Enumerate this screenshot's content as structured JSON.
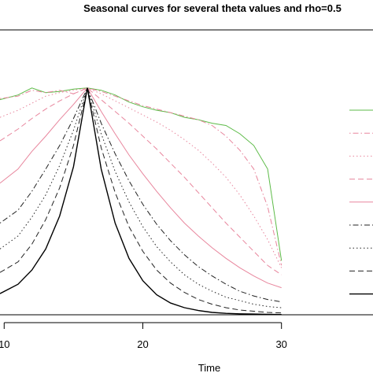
{
  "chart_data": {
    "type": "line",
    "title": "Seasonal curves for several theta values and rho=0.5",
    "xlabel": "Time",
    "ylabel": "",
    "xlim": [
      9.7,
      36.6
    ],
    "ylim": [
      0,
      1
    ],
    "x_ticks": [
      10,
      20,
      30
    ],
    "x_tick_labels": [
      "10",
      "20",
      "30"
    ],
    "legend_placement": "right",
    "grid": false,
    "peak": [
      16,
      0.965
    ],
    "series": [
      {
        "color": "#5dbb48",
        "dash": "solid",
        "width": 1.0,
        "values": [
          [
            9.7,
            0.915
          ],
          [
            11,
            0.935
          ],
          [
            12,
            0.965
          ],
          [
            13,
            0.945
          ],
          [
            14,
            0.95
          ],
          [
            15,
            0.96
          ],
          [
            16,
            0.965
          ],
          [
            17,
            0.955
          ],
          [
            18,
            0.935
          ],
          [
            19,
            0.905
          ],
          [
            20,
            0.885
          ],
          [
            21,
            0.87
          ],
          [
            22,
            0.86
          ],
          [
            23,
            0.84
          ],
          [
            24,
            0.83
          ],
          [
            25,
            0.815
          ],
          [
            26,
            0.805
          ],
          [
            27,
            0.77
          ],
          [
            28,
            0.72
          ],
          [
            29,
            0.62
          ],
          [
            30,
            0.23
          ]
        ]
      },
      {
        "color": "#e8869d",
        "dash": "dotdash",
        "width": 1.0,
        "values": [
          [
            9.7,
            0.92
          ],
          [
            11,
            0.93
          ],
          [
            12,
            0.955
          ],
          [
            13,
            0.945
          ],
          [
            14,
            0.955
          ],
          [
            15,
            0.94
          ],
          [
            16,
            0.965
          ],
          [
            17,
            0.95
          ],
          [
            18,
            0.93
          ],
          [
            19,
            0.91
          ],
          [
            20,
            0.89
          ],
          [
            21,
            0.875
          ],
          [
            22,
            0.86
          ],
          [
            23,
            0.845
          ],
          [
            24,
            0.83
          ],
          [
            25,
            0.805
          ],
          [
            26,
            0.76
          ],
          [
            27,
            0.7
          ],
          [
            28,
            0.62
          ],
          [
            29,
            0.46
          ],
          [
            30,
            0.21
          ]
        ]
      },
      {
        "color": "#e8869d",
        "dash": "dotted",
        "width": 1.0,
        "values": [
          [
            9.7,
            0.84
          ],
          [
            11,
            0.87
          ],
          [
            12,
            0.9
          ],
          [
            13,
            0.93
          ],
          [
            14,
            0.945
          ],
          [
            15,
            0.955
          ],
          [
            16,
            0.965
          ],
          [
            17,
            0.94
          ],
          [
            18,
            0.91
          ],
          [
            19,
            0.88
          ],
          [
            20,
            0.85
          ],
          [
            21,
            0.82
          ],
          [
            22,
            0.785
          ],
          [
            23,
            0.745
          ],
          [
            24,
            0.7
          ],
          [
            25,
            0.645
          ],
          [
            26,
            0.585
          ],
          [
            27,
            0.51
          ],
          [
            28,
            0.42
          ],
          [
            29,
            0.32
          ],
          [
            30,
            0.2
          ]
        ]
      },
      {
        "color": "#e8869d",
        "dash": "dashed",
        "width": 1.0,
        "values": [
          [
            9.7,
            0.74
          ],
          [
            11,
            0.79
          ],
          [
            12,
            0.835
          ],
          [
            13,
            0.875
          ],
          [
            14,
            0.91
          ],
          [
            15,
            0.94
          ],
          [
            16,
            0.965
          ],
          [
            17,
            0.915
          ],
          [
            18,
            0.865
          ],
          [
            19,
            0.815
          ],
          [
            20,
            0.76
          ],
          [
            21,
            0.705
          ],
          [
            22,
            0.645
          ],
          [
            23,
            0.585
          ],
          [
            24,
            0.52
          ],
          [
            25,
            0.455
          ],
          [
            26,
            0.39
          ],
          [
            27,
            0.33
          ],
          [
            28,
            0.27
          ],
          [
            29,
            0.21
          ],
          [
            30,
            0.17
          ]
        ]
      },
      {
        "color": "#e8869d",
        "dash": "solid",
        "width": 1.0,
        "values": [
          [
            9.7,
            0.56
          ],
          [
            11,
            0.62
          ],
          [
            12,
            0.695
          ],
          [
            13,
            0.76
          ],
          [
            14,
            0.83
          ],
          [
            15,
            0.895
          ],
          [
            16,
            0.965
          ],
          [
            17,
            0.865
          ],
          [
            18,
            0.77
          ],
          [
            19,
            0.68
          ],
          [
            20,
            0.6
          ],
          [
            21,
            0.525
          ],
          [
            22,
            0.455
          ],
          [
            23,
            0.39
          ],
          [
            24,
            0.335
          ],
          [
            25,
            0.285
          ],
          [
            26,
            0.24
          ],
          [
            27,
            0.2
          ],
          [
            28,
            0.165
          ],
          [
            29,
            0.135
          ],
          [
            30,
            0.115
          ]
        ]
      },
      {
        "color": "#222222",
        "dash": "dotdash",
        "width": 1.0,
        "values": [
          [
            9.7,
            0.39
          ],
          [
            11,
            0.445
          ],
          [
            12,
            0.525
          ],
          [
            13,
            0.62
          ],
          [
            14,
            0.72
          ],
          [
            15,
            0.835
          ],
          [
            16,
            0.965
          ],
          [
            17,
            0.815
          ],
          [
            18,
            0.685
          ],
          [
            19,
            0.57
          ],
          [
            20,
            0.47
          ],
          [
            21,
            0.385
          ],
          [
            22,
            0.315
          ],
          [
            23,
            0.255
          ],
          [
            24,
            0.205
          ],
          [
            25,
            0.165
          ],
          [
            26,
            0.13
          ],
          [
            27,
            0.1
          ],
          [
            28,
            0.08
          ],
          [
            29,
            0.065
          ],
          [
            30,
            0.055
          ]
        ]
      },
      {
        "color": "#222222",
        "dash": "dotted",
        "width": 1.0,
        "values": [
          [
            9.7,
            0.28
          ],
          [
            11,
            0.335
          ],
          [
            12,
            0.415
          ],
          [
            13,
            0.51
          ],
          [
            14,
            0.635
          ],
          [
            15,
            0.785
          ],
          [
            16,
            0.965
          ],
          [
            17,
            0.77
          ],
          [
            18,
            0.61
          ],
          [
            19,
            0.48
          ],
          [
            20,
            0.375
          ],
          [
            21,
            0.29
          ],
          [
            22,
            0.225
          ],
          [
            23,
            0.17
          ],
          [
            24,
            0.13
          ],
          [
            25,
            0.1
          ],
          [
            26,
            0.075
          ],
          [
            27,
            0.06
          ],
          [
            28,
            0.045
          ],
          [
            29,
            0.035
          ],
          [
            30,
            0.03
          ]
        ]
      },
      {
        "color": "#222222",
        "dash": "dashed",
        "width": 1.0,
        "values": [
          [
            9.7,
            0.18
          ],
          [
            11,
            0.225
          ],
          [
            12,
            0.3
          ],
          [
            13,
            0.405
          ],
          [
            14,
            0.54
          ],
          [
            15,
            0.72
          ],
          [
            16,
            0.965
          ],
          [
            17,
            0.71
          ],
          [
            18,
            0.52
          ],
          [
            19,
            0.375
          ],
          [
            20,
            0.27
          ],
          [
            21,
            0.19
          ],
          [
            22,
            0.135
          ],
          [
            23,
            0.095
          ],
          [
            24,
            0.065
          ],
          [
            25,
            0.045
          ],
          [
            26,
            0.03
          ],
          [
            27,
            0.02
          ],
          [
            28,
            0.015
          ],
          [
            29,
            0.01
          ],
          [
            30,
            0.008
          ]
        ]
      },
      {
        "color": "#000000",
        "dash": "solid",
        "width": 1.4,
        "values": [
          [
            9.7,
            0.09
          ],
          [
            11,
            0.13
          ],
          [
            12,
            0.19
          ],
          [
            13,
            0.28
          ],
          [
            14,
            0.42
          ],
          [
            15,
            0.63
          ],
          [
            16,
            0.965
          ],
          [
            17,
            0.62
          ],
          [
            18,
            0.39
          ],
          [
            19,
            0.24
          ],
          [
            20,
            0.145
          ],
          [
            21,
            0.085
          ],
          [
            22,
            0.05
          ],
          [
            23,
            0.03
          ],
          [
            24,
            0.018
          ],
          [
            25,
            0.01
          ],
          [
            26,
            0.006
          ],
          [
            27,
            0.004
          ],
          [
            28,
            0.003
          ],
          [
            29,
            0.002
          ],
          [
            30,
            0.001
          ]
        ]
      }
    ]
  }
}
